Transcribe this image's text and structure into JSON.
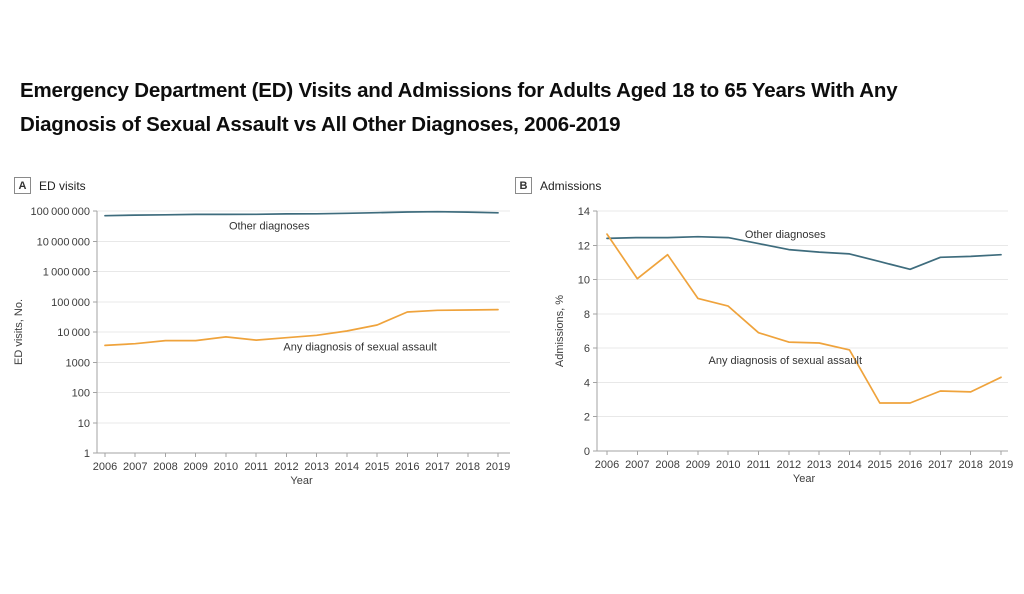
{
  "figure_title": {
    "lines": [
      "Emergency Department (ED) Visits and Admissions for Adults Aged 18 to 65 Years With Any",
      "Diagnosis of Sexual Assault vs All Other Diagnoses, 2006-2019"
    ]
  },
  "colors": {
    "other_diagnoses": "#3e6c7d",
    "sexual_assault": "#efa33c",
    "grid": "#e8e8e8",
    "axis": "#a3a3a3"
  },
  "chart_data": [
    {
      "panel": "A",
      "panel_title": "ED visits",
      "type": "line",
      "xlabel": "Year",
      "ylabel": "ED visits, No.",
      "yscale": "log",
      "ylim": [
        1,
        100000000
      ],
      "x": [
        2006,
        2007,
        2008,
        2009,
        2010,
        2011,
        2012,
        2013,
        2014,
        2015,
        2016,
        2017,
        2018,
        2019
      ],
      "yticks": [
        1,
        10,
        100,
        1000,
        10000,
        100000,
        1000000,
        10000000,
        100000000
      ],
      "ytick_labels": [
        "1",
        "10",
        "100",
        "1000",
        "10 000",
        "100 000",
        "1 000 000",
        "10 000 000",
        "100 000 000"
      ],
      "grid": true,
      "legend_position": "inline-annotations",
      "series": [
        {
          "name": "Other diagnoses",
          "color_key": "other_diagnoses",
          "values": [
            70000000,
            73000000,
            75000000,
            77000000,
            77000000,
            78000000,
            80000000,
            81000000,
            84000000,
            88000000,
            93000000,
            95000000,
            92000000,
            87000000
          ]
        },
        {
          "name": "Any diagnosis of sexual assault",
          "color_key": "sexual_assault",
          "values": [
            3600,
            4100,
            5200,
            5200,
            6900,
            5400,
            6500,
            7800,
            10800,
            17000,
            46000,
            52000,
            53500,
            55000
          ]
        }
      ],
      "annotations": [
        {
          "text": "Other diagnoses",
          "x": 2010.1,
          "y": 33000000
        },
        {
          "text": "Any diagnosis of sexual assault",
          "x": 2011.9,
          "y": 3300
        }
      ]
    },
    {
      "panel": "B",
      "panel_title": "Admissions",
      "type": "line",
      "xlabel": "Year",
      "ylabel": "Admissions, %",
      "yscale": "linear",
      "ylim": [
        0,
        14
      ],
      "x": [
        2006,
        2007,
        2008,
        2009,
        2010,
        2011,
        2012,
        2013,
        2014,
        2015,
        2016,
        2017,
        2018,
        2019
      ],
      "yticks": [
        0,
        2,
        4,
        6,
        8,
        10,
        12,
        14
      ],
      "ytick_labels": [
        "0",
        "2",
        "4",
        "6",
        "8",
        "10",
        "12",
        "14"
      ],
      "grid": true,
      "legend_position": "inline-annotations",
      "series": [
        {
          "name": "Other diagnoses",
          "color_key": "other_diagnoses",
          "values": [
            12.4,
            12.45,
            12.45,
            12.5,
            12.45,
            12.1,
            11.75,
            11.6,
            11.5,
            11.05,
            10.6,
            11.3,
            11.35,
            11.45
          ]
        },
        {
          "name": "Any diagnosis of sexual assault",
          "color_key": "sexual_assault",
          "values": [
            12.65,
            10.05,
            11.45,
            8.9,
            8.45,
            6.9,
            6.35,
            6.3,
            5.9,
            2.8,
            2.8,
            3.5,
            3.45,
            4.3
          ]
        }
      ],
      "annotations": [
        {
          "text": "Other diagnoses",
          "x": 2010.55,
          "y": 12.65
        },
        {
          "text": "Any diagnosis of sexual assault",
          "x": 2009.35,
          "y": 5.3
        }
      ]
    }
  ]
}
